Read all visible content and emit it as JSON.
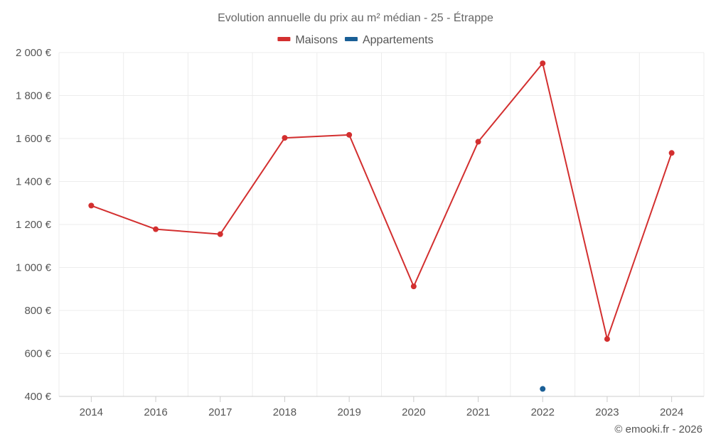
{
  "chart_data": {
    "type": "line",
    "title": "Evolution annuelle du prix au m² médian - 25 - Étrappe",
    "categories": [
      "2014",
      "2016",
      "2017",
      "2018",
      "2019",
      "2020",
      "2021",
      "2022",
      "2023",
      "2024"
    ],
    "ylim": [
      400,
      2000
    ],
    "yticks": [
      400,
      600,
      800,
      1000,
      1200,
      1400,
      1600,
      1800,
      2000
    ],
    "ytick_labels": [
      "400 €",
      "600 €",
      "800 €",
      "1 000 €",
      "1 200 €",
      "1 400 €",
      "1 600 €",
      "1 800 €",
      "2 000 €"
    ],
    "grid": true,
    "legend_position": "top-center",
    "series": [
      {
        "name": "Maisons",
        "color": "#d32f2f",
        "values": [
          1288,
          1178,
          1155,
          1603,
          1617,
          912,
          1585,
          1950,
          667,
          1533
        ]
      },
      {
        "name": "Appartements",
        "color": "#1a5f96",
        "values": [
          null,
          null,
          null,
          null,
          null,
          null,
          null,
          435,
          null,
          null
        ]
      }
    ]
  },
  "credit": "© emooki.fr - 2026"
}
